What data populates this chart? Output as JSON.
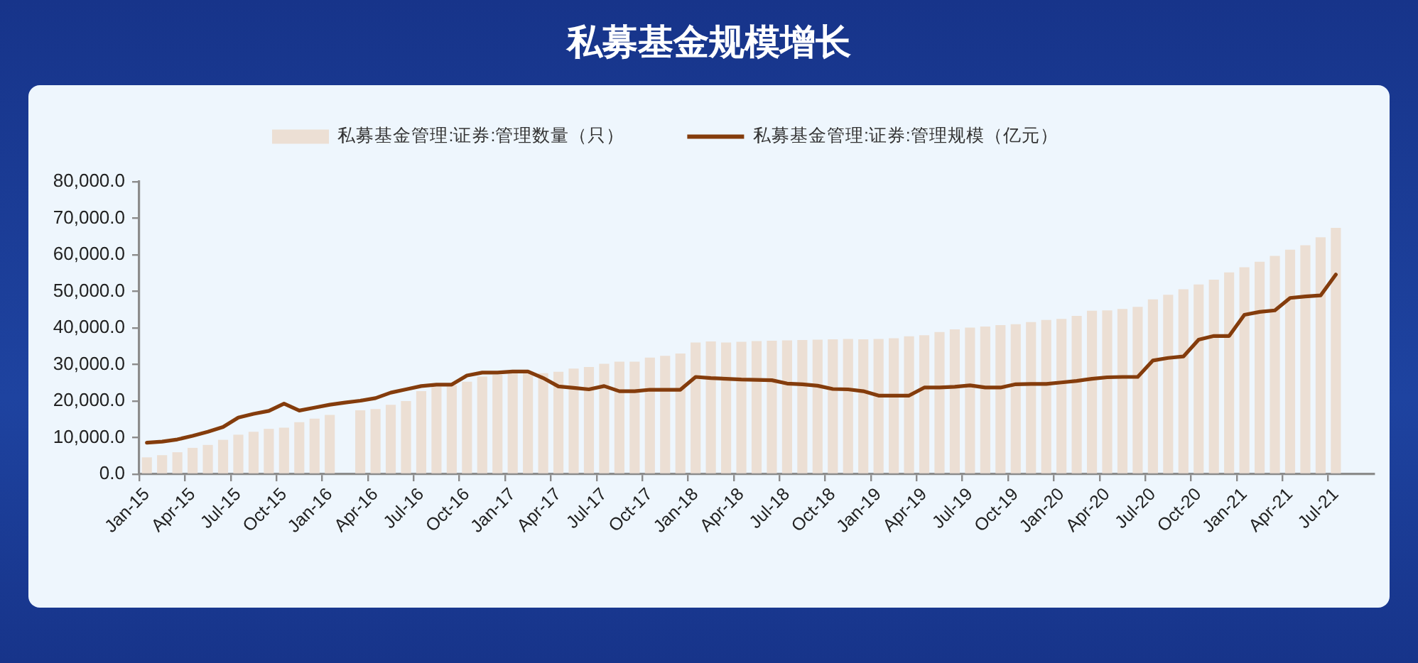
{
  "chart_data": {
    "type": "bar",
    "title": "私募基金规模增长",
    "legend": "top",
    "categories": [
      "Jan-15",
      null,
      null,
      "Apr-15",
      null,
      null,
      "Jul-15",
      null,
      null,
      "Oct-15",
      null,
      null,
      "Jan-16",
      null,
      null,
      "Apr-16",
      null,
      null,
      "Jul-16",
      null,
      null,
      "Oct-16",
      null,
      null,
      "Jan-17",
      null,
      null,
      "Apr-17",
      null,
      null,
      "Jul-17",
      null,
      null,
      "Oct-17",
      null,
      null,
      "Jan-18",
      null,
      null,
      "Apr-18",
      null,
      null,
      "Jul-18",
      null,
      null,
      "Oct-18",
      null,
      null,
      "Jan-19",
      null,
      null,
      "Apr-19",
      null,
      null,
      "Jul-19",
      null,
      null,
      "Oct-19",
      null,
      null,
      "Jan-20",
      null,
      null,
      "Apr-20",
      null,
      null,
      "Jul-20",
      null,
      null,
      "Oct-20",
      null,
      null,
      "Jan-21",
      null,
      null,
      "Apr-21",
      null,
      null,
      "Jul-21",
      null,
      null
    ],
    "ylim": [
      0,
      80000
    ],
    "yticks": [
      {
        "value": 0,
        "label": "0.0"
      },
      {
        "value": 10000,
        "label": "10,000.0"
      },
      {
        "value": 20000,
        "label": "20,000.0"
      },
      {
        "value": 30000,
        "label": "30,000.0"
      },
      {
        "value": 40000,
        "label": "40,000.0"
      },
      {
        "value": 50000,
        "label": "50,000.0"
      },
      {
        "value": 60000,
        "label": "60,000.0"
      },
      {
        "value": 70000,
        "label": "70,000.0"
      },
      {
        "value": 80000,
        "label": "80,000.0"
      }
    ],
    "series": [
      {
        "name": "私募基金管理:证券:管理数量（只）",
        "color": "#ecdfd4",
        "values": [
          4600,
          5200,
          6000,
          7200,
          8000,
          9400,
          10800,
          11600,
          12400,
          12700,
          14200,
          15200,
          16200,
          null,
          17500,
          17800,
          19000,
          20000,
          22700,
          24000,
          24300,
          25300,
          26700,
          27200,
          27600,
          27600,
          27600,
          28000,
          28900,
          29300,
          30200,
          30800,
          30800,
          31900,
          32400,
          33000,
          36000,
          36300,
          36000,
          36200,
          36400,
          36500,
          36600,
          36700,
          36800,
          36900,
          37000,
          36900,
          37000,
          37200,
          37700,
          38000,
          38900,
          39600,
          40100,
          40400,
          40800,
          41000,
          41600,
          42200,
          42500,
          43300,
          44700,
          44800,
          45200,
          45800,
          47800,
          49100,
          50600,
          51900,
          53200,
          55200,
          56600,
          58100,
          59700,
          61400,
          62600,
          64800,
          67400,
          null,
          null
        ]
      },
      {
        "name": "私募基金管理:证券:管理规模（亿元）",
        "type": "line",
        "color": "#843c0c",
        "values": [
          8600,
          8900,
          9500,
          10500,
          11600,
          12900,
          15500,
          16500,
          17300,
          19300,
          17400,
          18200,
          19000,
          19600,
          20100,
          20800,
          22300,
          23200,
          24100,
          24500,
          24500,
          27000,
          27800,
          27800,
          28100,
          28100,
          26300,
          24000,
          23600,
          23200,
          24100,
          22700,
          22700,
          23100,
          23100,
          23100,
          26600,
          26300,
          26100,
          25900,
          25800,
          25700,
          24800,
          24600,
          24200,
          23300,
          23200,
          22700,
          21500,
          21500,
          21500,
          23700,
          23700,
          23900,
          24300,
          23700,
          23700,
          24600,
          24700,
          24700,
          25100,
          25500,
          26100,
          26500,
          26600,
          26600,
          31100,
          31800,
          32200,
          36800,
          37800,
          37800,
          43600,
          44400,
          44800,
          48200,
          48600,
          48900,
          54600,
          null,
          null
        ]
      }
    ]
  }
}
